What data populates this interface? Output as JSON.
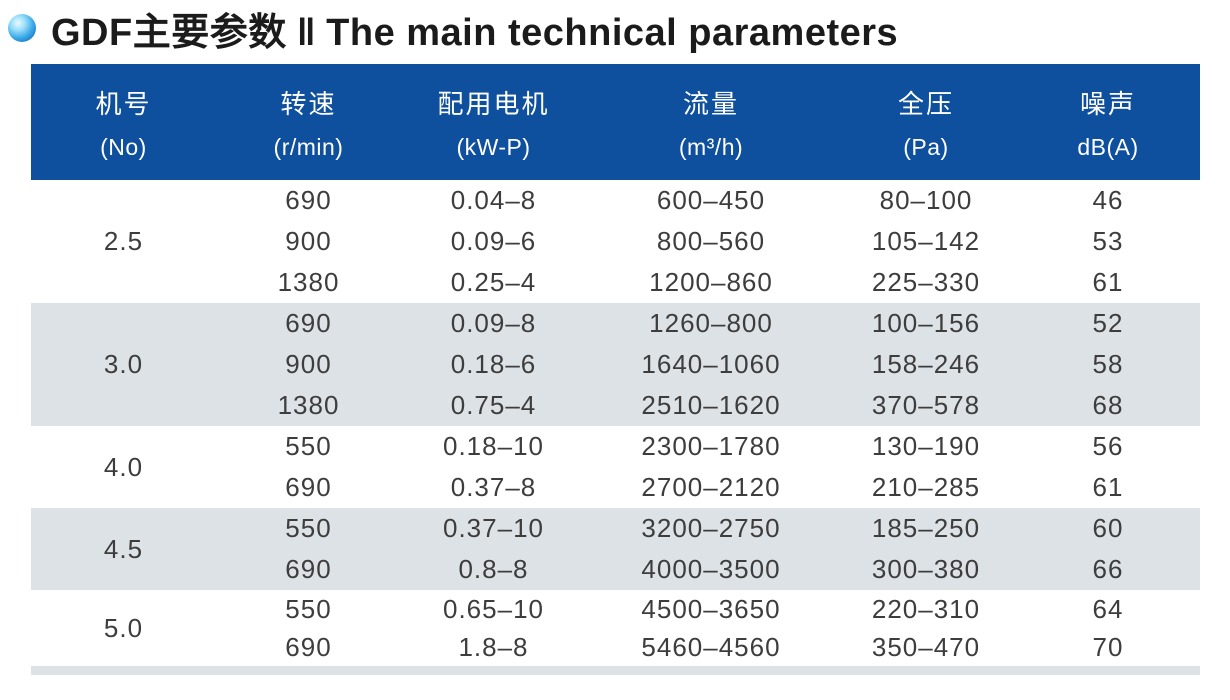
{
  "page": {
    "title_zh": "GDF主要参数",
    "title_divider": "‖",
    "title_en": "The main technical parameters"
  },
  "colors": {
    "header_bg": "#0e4f9e",
    "band_gray": "#dde2e6",
    "title_text": "#1b1b1b",
    "cell_text": "#3d3d3d",
    "bullet_blue": "#0a55ad"
  },
  "table": {
    "columns": [
      {
        "zh": "机号",
        "sub": "(No)"
      },
      {
        "zh": "转速",
        "sub": "(r/min)"
      },
      {
        "zh": "配用电机",
        "sub": "(kW-P)"
      },
      {
        "zh": "流量",
        "sub": "(m³/h)"
      },
      {
        "zh": "全压",
        "sub": "(Pa)"
      },
      {
        "zh": "噪声",
        "sub": "dB(A)"
      }
    ],
    "groups": [
      {
        "no": "2.5",
        "rows": [
          {
            "rpm": "690",
            "motor": "0.04–8",
            "flow": "600–450",
            "pressure": "80–100",
            "noise": "46"
          },
          {
            "rpm": "900",
            "motor": "0.09–6",
            "flow": "800–560",
            "pressure": "105–142",
            "noise": "53"
          },
          {
            "rpm": "1380",
            "motor": "0.25–4",
            "flow": "1200–860",
            "pressure": "225–330",
            "noise": "61"
          }
        ]
      },
      {
        "no": "3.0",
        "rows": [
          {
            "rpm": "690",
            "motor": "0.09–8",
            "flow": "1260–800",
            "pressure": "100–156",
            "noise": "52"
          },
          {
            "rpm": "900",
            "motor": "0.18–6",
            "flow": "1640–1060",
            "pressure": "158–246",
            "noise": "58"
          },
          {
            "rpm": "1380",
            "motor": "0.75–4",
            "flow": "2510–1620",
            "pressure": "370–578",
            "noise": "68"
          }
        ]
      },
      {
        "no": "4.0",
        "rows": [
          {
            "rpm": "550",
            "motor": "0.18–10",
            "flow": "2300–1780",
            "pressure": "130–190",
            "noise": "56"
          },
          {
            "rpm": "690",
            "motor": "0.37–8",
            "flow": "2700–2120",
            "pressure": "210–285",
            "noise": "61"
          }
        ]
      },
      {
        "no": "4.5",
        "rows": [
          {
            "rpm": "550",
            "motor": "0.37–10",
            "flow": "3200–2750",
            "pressure": "185–250",
            "noise": "60"
          },
          {
            "rpm": "690",
            "motor": "0.8–8",
            "flow": "4000–3500",
            "pressure": "300–380",
            "noise": "66"
          }
        ]
      },
      {
        "no": "5.0",
        "rows": [
          {
            "rpm": "550",
            "motor": "0.65–10",
            "flow": "4500–3650",
            "pressure": "220–310",
            "noise": "64"
          },
          {
            "rpm": "690",
            "motor": "1.8–8",
            "flow": "5460–4560",
            "pressure": "350–470",
            "noise": "70"
          }
        ]
      }
    ]
  }
}
